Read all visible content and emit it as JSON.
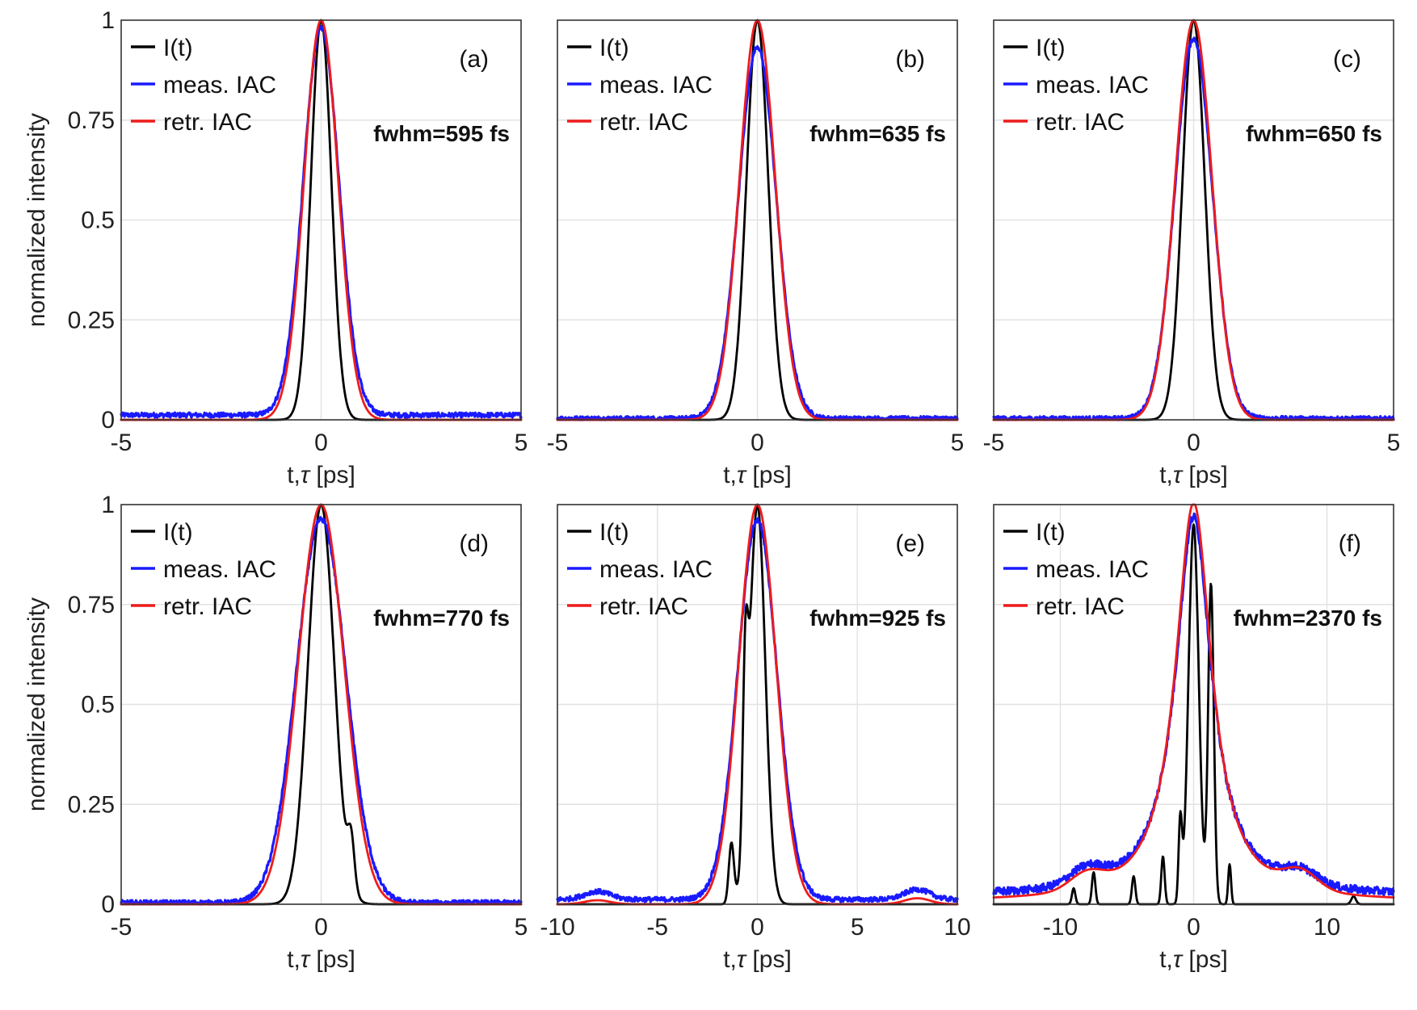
{
  "figure": {
    "ylabel": "normalized intensity",
    "yticks": [
      "0",
      "0.25",
      "0.5",
      "0.75",
      "1"
    ],
    "xlabel_prefix": "t,",
    "xlabel_tau": "τ",
    "xlabel_suffix": " [ps]",
    "legend": [
      "I(t)",
      "meas. IAC",
      "retr. IAC"
    ],
    "colors": {
      "I(t)": "#000000",
      "meas. IAC": "#1a1aff",
      "retr. IAC": "#ee1c1c",
      "grid": "#e2e2e2"
    }
  },
  "chart_data": [
    {
      "type": "line",
      "tag": "(a)",
      "fwhm": "fwhm=595 fs",
      "xlim": [
        -5,
        5
      ],
      "ylim": [
        0,
        1
      ],
      "xticks": [
        -5,
        0,
        5
      ],
      "xtick_labels": [
        "-5",
        "0",
        "5"
      ],
      "series": [
        {
          "name": "I(t)",
          "model": "gauss",
          "fwhm_ps": 0.6,
          "peak": 1.0
        },
        {
          "name": "meas. IAC",
          "model": "gauss",
          "fwhm_ps": 1.05,
          "peak": 0.97,
          "baseline": 0.012,
          "noise": 0.006
        },
        {
          "name": "retr. IAC",
          "model": "gauss",
          "fwhm_ps": 1.0,
          "peak": 1.0
        }
      ]
    },
    {
      "type": "line",
      "tag": "(b)",
      "fwhm": "fwhm=635 fs",
      "xlim": [
        -5,
        5
      ],
      "ylim": [
        0,
        1
      ],
      "xticks": [
        -5,
        0,
        5
      ],
      "xtick_labels": [
        "-5",
        "0",
        "5"
      ],
      "series": [
        {
          "name": "I(t)",
          "model": "gauss",
          "fwhm_ps": 0.64,
          "peak": 1.0
        },
        {
          "name": "meas. IAC",
          "model": "gauss",
          "fwhm_ps": 1.1,
          "peak": 0.93,
          "baseline": 0.004,
          "noise": 0.005
        },
        {
          "name": "retr. IAC",
          "model": "gauss",
          "fwhm_ps": 1.05,
          "peak": 1.0
        }
      ]
    },
    {
      "type": "line",
      "tag": "(c)",
      "fwhm": "fwhm=650 fs",
      "xlim": [
        -5,
        5
      ],
      "ylim": [
        0,
        1
      ],
      "xticks": [
        -5,
        0,
        5
      ],
      "xtick_labels": [
        "-5",
        "0",
        "5"
      ],
      "series": [
        {
          "name": "I(t)",
          "model": "gauss",
          "fwhm_ps": 0.65,
          "peak": 1.0
        },
        {
          "name": "meas. IAC",
          "model": "gauss",
          "fwhm_ps": 1.1,
          "peak": 0.95,
          "baseline": 0.004,
          "noise": 0.005
        },
        {
          "name": "retr. IAC",
          "model": "gauss",
          "fwhm_ps": 1.08,
          "peak": 1.0
        }
      ]
    },
    {
      "type": "line",
      "tag": "(d)",
      "fwhm": "fwhm=770 fs",
      "xlim": [
        -5,
        5
      ],
      "ylim": [
        0,
        1
      ],
      "xticks": [
        -5,
        0,
        5
      ],
      "xtick_labels": [
        "-5",
        "0",
        "5"
      ],
      "series": [
        {
          "name": "I(t)",
          "model": "gauss",
          "fwhm_ps": 0.77,
          "peak": 1.0,
          "bumps": [
            [
              0.75,
              0.12,
              0.2
            ]
          ]
        },
        {
          "name": "meas. IAC",
          "model": "gauss",
          "fwhm_ps": 1.45,
          "peak": 0.96,
          "baseline": 0.004,
          "noise": 0.006
        },
        {
          "name": "retr. IAC",
          "model": "gauss",
          "fwhm_ps": 1.35,
          "peak": 1.0
        }
      ]
    },
    {
      "type": "line",
      "tag": "(e)",
      "fwhm": "fwhm=925 fs",
      "xlim": [
        -10,
        10
      ],
      "ylim": [
        0,
        1
      ],
      "xticks": [
        -10,
        -5,
        0,
        5,
        10
      ],
      "xtick_labels": [
        "-10",
        "-5",
        "0",
        "5",
        "10"
      ],
      "series": [
        {
          "name": "I(t)",
          "model": "gauss",
          "fwhm_ps": 0.93,
          "peak": 1.0,
          "bumps": [
            [
              -0.6,
              0.4,
              0.3
            ],
            [
              -1.3,
              0.15,
              0.3
            ]
          ]
        },
        {
          "name": "meas. IAC",
          "model": "gauss",
          "fwhm_ps": 2.3,
          "peak": 0.95,
          "baseline": 0.012,
          "noise": 0.006,
          "bumps": [
            [
              -8,
              0.02,
              1.5
            ],
            [
              8,
              0.025,
              1.5
            ]
          ]
        },
        {
          "name": "retr. IAC",
          "model": "gauss",
          "fwhm_ps": 2.2,
          "peak": 1.0,
          "bumps": [
            [
              -8,
              0.01,
              1.5
            ],
            [
              8,
              0.015,
              1.5
            ]
          ]
        }
      ]
    },
    {
      "type": "line",
      "tag": "(f)",
      "fwhm": "fwhm=2370 fs",
      "xlim": [
        -15,
        15
      ],
      "ylim": [
        0,
        1
      ],
      "xticks": [
        -10,
        0,
        10
      ],
      "xtick_labels": [
        "-10",
        "0",
        "10"
      ],
      "series": [
        {
          "name": "I(t)",
          "model": "gauss",
          "fwhm_ps": 0.9,
          "peak": 0.95,
          "bumps": [
            [
              1.3,
              0.8,
              0.5
            ],
            [
              -1.0,
              0.2,
              0.3
            ],
            [
              -2.3,
              0.12,
              0.3
            ],
            [
              -4.5,
              0.07,
              0.3
            ],
            [
              -7.5,
              0.08,
              0.3
            ],
            [
              -9,
              0.04,
              0.3
            ],
            [
              2.7,
              0.1,
              0.25
            ],
            [
              12,
              0.02,
              0.4
            ]
          ]
        },
        {
          "name": "meas. IAC",
          "model": "lorentz",
          "fwhm_ps": 3.3,
          "peak": 0.95,
          "baseline": 0.02,
          "noise": 0.01,
          "bumps": [
            [
              -8,
              0.04,
              3
            ],
            [
              8,
              0.035,
              3
            ]
          ]
        },
        {
          "name": "retr. IAC",
          "model": "lorentz",
          "fwhm_ps": 3.3,
          "peak": 1.0,
          "baseline": 0.005,
          "bumps": [
            [
              -8,
              0.04,
              3
            ],
            [
              8,
              0.045,
              3
            ]
          ]
        }
      ]
    }
  ]
}
